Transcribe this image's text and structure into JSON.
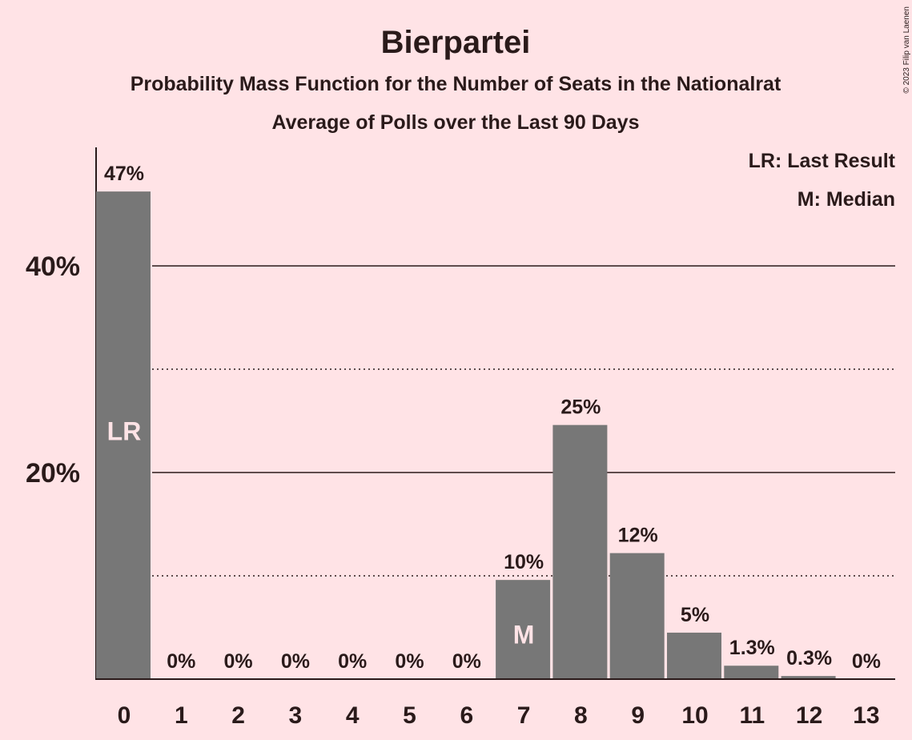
{
  "chart_data": {
    "type": "bar",
    "title": "Bierpartei",
    "subtitle": "Probability Mass Function for the Number of Seats in the Nationalrat",
    "subtitle2": "Average of Polls over the Last 90 Days",
    "categories": [
      "0",
      "1",
      "2",
      "3",
      "4",
      "5",
      "6",
      "7",
      "8",
      "9",
      "10",
      "11",
      "12",
      "13"
    ],
    "values": [
      47.2,
      0,
      0,
      0,
      0,
      0,
      0,
      9.6,
      24.6,
      12.2,
      4.5,
      1.3,
      0.3,
      0
    ],
    "labels": [
      "47%",
      "0%",
      "0%",
      "0%",
      "0%",
      "0%",
      "0%",
      "10%",
      "25%",
      "12%",
      "5%",
      "1.3%",
      "0.3%",
      "0%"
    ],
    "markers": {
      "0": "LR",
      "7": "M"
    },
    "y_ticks": [
      {
        "value": 40,
        "label": "40%"
      },
      {
        "value": 20,
        "label": "20%"
      }
    ],
    "dotted_gridlines": [
      10,
      30
    ],
    "ylim": [
      0,
      51
    ],
    "legend": [
      "LR: Last Result",
      "M: Median"
    ],
    "legend_position": "top-right",
    "copyright": "© 2023 Filip van Laenen",
    "colors": {
      "background": "#ffe3e6",
      "bar": "#777777",
      "text": "#2a1a1a",
      "marker_text": "#ffe3e6"
    }
  }
}
